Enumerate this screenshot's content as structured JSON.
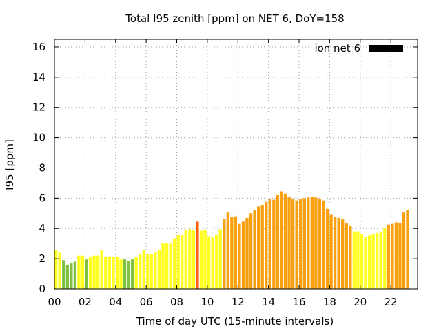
{
  "chart_data": {
    "type": "bar",
    "title": "Total I95 zenith [ppm] on NET 6, DoY=158",
    "xlabel": "Time of day UTC (15-minute intervals)",
    "ylabel": "I95 [ppm]",
    "xlim": [
      0,
      23.75
    ],
    "ylim": [
      0,
      16.5
    ],
    "x_ticks": [
      0,
      2,
      4,
      6,
      8,
      10,
      12,
      14,
      16,
      18,
      20,
      22
    ],
    "x_tick_labels": [
      "00",
      "02",
      "04",
      "06",
      "08",
      "10",
      "12",
      "14",
      "16",
      "18",
      "20",
      "22"
    ],
    "y_ticks": [
      0,
      2,
      4,
      6,
      8,
      10,
      12,
      14,
      16
    ],
    "y_tick_labels": [
      "0",
      "2",
      "4",
      "6",
      "8",
      "10",
      "12",
      "14",
      "16"
    ],
    "grid": true,
    "legend": {
      "label": "ion net 6",
      "position": "top-right",
      "color": "#000000"
    },
    "bar_interval_hours": 0.25,
    "colors": {
      "green": "#80c040",
      "yellow": "#ffff20",
      "orange": "#f8a010",
      "red": "#ff6010"
    },
    "series": [
      {
        "values": [
          2.6,
          2.4,
          1.9,
          1.6,
          1.7,
          1.8,
          2.2,
          2.2,
          1.95,
          2.1,
          2.2,
          2.2,
          2.55,
          2.15,
          2.15,
          2.15,
          2.1,
          2.0,
          1.95,
          1.85,
          1.95,
          2.1,
          2.3,
          2.55,
          2.3,
          2.3,
          2.4,
          2.6,
          3.05,
          3.0,
          3.0,
          3.35,
          3.55,
          3.55,
          3.9,
          3.95,
          3.9,
          4.45,
          3.85,
          3.9,
          3.5,
          3.4,
          3.55,
          3.95,
          4.6,
          5.05,
          4.75,
          4.8,
          4.3,
          4.45,
          4.7,
          5.0,
          5.2,
          5.45,
          5.55,
          5.75,
          5.95,
          5.9,
          6.2,
          6.45,
          6.3,
          6.1,
          5.95,
          5.85,
          5.95,
          6.0,
          6.05,
          6.1,
          6.05,
          5.95,
          5.85,
          5.3,
          4.9,
          4.75,
          4.7,
          4.6,
          4.35,
          4.15,
          3.8,
          3.8,
          3.6,
          3.45,
          3.55,
          3.6,
          3.7,
          3.75,
          4.0,
          4.25,
          4.3,
          4.4,
          4.35,
          5.05,
          5.2
        ],
        "colors": [
          "yellow",
          "yellow",
          "green",
          "green",
          "green",
          "green",
          "yellow",
          "yellow",
          "green",
          "yellow",
          "yellow",
          "yellow",
          "yellow",
          "yellow",
          "yellow",
          "yellow",
          "yellow",
          "yellow",
          "green",
          "green",
          "green",
          "yellow",
          "yellow",
          "yellow",
          "yellow",
          "yellow",
          "yellow",
          "yellow",
          "yellow",
          "yellow",
          "yellow",
          "yellow",
          "yellow",
          "yellow",
          "yellow",
          "yellow",
          "yellow",
          "red",
          "yellow",
          "yellow",
          "yellow",
          "yellow",
          "yellow",
          "yellow",
          "orange",
          "orange",
          "orange",
          "orange",
          "orange",
          "orange",
          "orange",
          "orange",
          "orange",
          "orange",
          "orange",
          "orange",
          "orange",
          "orange",
          "orange",
          "orange",
          "orange",
          "orange",
          "orange",
          "orange",
          "orange",
          "orange",
          "orange",
          "orange",
          "orange",
          "orange",
          "orange",
          "orange",
          "orange",
          "orange",
          "orange",
          "orange",
          "orange",
          "orange",
          "yellow",
          "yellow",
          "yellow",
          "yellow",
          "yellow",
          "yellow",
          "yellow",
          "yellow",
          "yellow",
          "orange",
          "orange",
          "orange",
          "orange",
          "orange",
          "orange"
        ]
      }
    ]
  }
}
